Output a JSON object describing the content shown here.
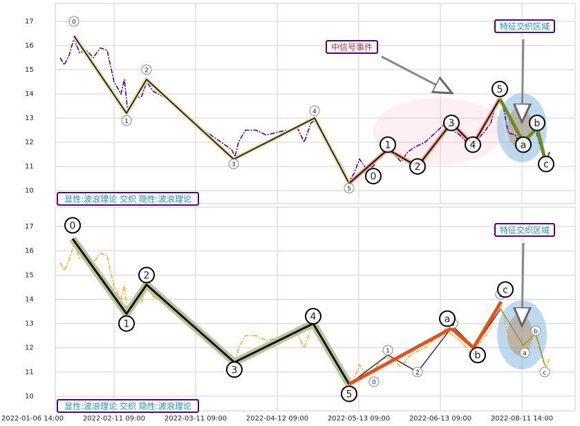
{
  "chart_data": [
    {
      "type": "wave",
      "xlim": [
        16.5,
        392.5
      ],
      "ylim": [
        9.46,
        17.74
      ],
      "xticks": [
        59,
        118,
        177,
        236,
        295,
        354
      ],
      "yticks": [
        10,
        11,
        12,
        13,
        14,
        15,
        16,
        17
      ],
      "grid": true,
      "price": {
        "color": "#4b0082",
        "x": [
          20,
          23,
          26.5,
          30,
          34,
          39,
          44,
          49,
          54,
          59,
          64,
          66.5,
          69,
          74,
          79,
          82.5,
          87.5,
          94,
          101.5,
          109,
          116.5,
          124,
          131.5,
          139,
          144,
          146.5,
          149,
          154,
          161.5,
          169,
          176.5,
          184,
          191.5,
          196.5,
          201.5,
          204,
          209,
          214,
          219,
          224,
          229,
          232.5,
          236.5,
          241.5,
          246.5,
          251.5,
          256.5,
          261.5,
          266.5,
          271.5,
          276.5,
          284,
          291.5,
          299,
          304,
          309,
          314,
          317.5,
          321.5,
          326.5,
          331.5,
          336.5,
          340.5,
          344,
          349,
          354,
          359,
          364,
          369,
          371.5,
          374
        ],
        "y": [
          15.5,
          15.2,
          15.6,
          16.3,
          15.7,
          15.8,
          15.5,
          15.9,
          15.8,
          14.5,
          14.0,
          14.6,
          13.2,
          13.8,
          13.9,
          14.5,
          14.1,
          13.9,
          13.6,
          13.2,
          12.9,
          12.5,
          12.2,
          11.9,
          11.7,
          11.4,
          12.0,
          12.5,
          12.5,
          12.3,
          12.4,
          12.5,
          12.6,
          12.0,
          12.8,
          12.9,
          12.4,
          12.0,
          11.5,
          11.0,
          10.4,
          10.7,
          11.3,
          10.9,
          11.0,
          11.5,
          11.6,
          11.5,
          11.2,
          11.6,
          11.8,
          12.0,
          12.4,
          12.8,
          12.5,
          12.3,
          12.0,
          11.7,
          12.1,
          12.4,
          12.8,
          13.8,
          13.5,
          12.4,
          12.3,
          11.8,
          12.2,
          12.5,
          11.5,
          11.2,
          11.6
        ]
      },
      "waves": [
        {
          "color": "#2b2b10",
          "halo": "#e4e0b8",
          "x": [
            30,
            68,
            82.5,
            145.5,
            204,
            229
          ],
          "y": [
            16.4,
            13.2,
            14.6,
            11.3,
            13.0,
            10.3
          ]
        },
        {
          "color": "#111111",
          "halo": "#f4a582",
          "x": [
            229,
            257,
            278.5,
            303,
            318.5,
            338
          ],
          "y": [
            10.3,
            11.7,
            11.0,
            12.8,
            11.9,
            13.8
          ]
        },
        {
          "color": "#6b8e23",
          "x": [
            338,
            355,
            365,
            371.5
          ],
          "y": [
            13.8,
            12.0,
            12.6,
            11.1
          ]
        }
      ],
      "minor_labels": [
        {
          "x": 30,
          "y": 17.0,
          "label": "0"
        },
        {
          "x": 68,
          "y": 12.9,
          "label": "1"
        },
        {
          "x": 82.5,
          "y": 15.0,
          "label": "2"
        },
        {
          "x": 145.5,
          "y": 11.1,
          "label": "3"
        },
        {
          "x": 204,
          "y": 13.3,
          "label": "4"
        },
        {
          "x": 229,
          "y": 10.1,
          "label": "5"
        }
      ],
      "major_labels": [
        {
          "x": 246.5,
          "y": 10.6,
          "label": "0"
        },
        {
          "x": 257,
          "y": 11.9,
          "label": "1"
        },
        {
          "x": 278.5,
          "y": 11.0,
          "label": "2"
        },
        {
          "x": 303,
          "y": 12.8,
          "label": "3"
        },
        {
          "x": 318.5,
          "y": 11.9,
          "label": "4"
        },
        {
          "x": 338,
          "y": 14.2,
          "label": "5"
        },
        {
          "x": 355,
          "y": 11.9,
          "label": "a"
        },
        {
          "x": 365,
          "y": 12.8,
          "label": "b"
        },
        {
          "x": 371.5,
          "y": 11.1,
          "label": "c"
        }
      ],
      "event_label": "中信号事件",
      "zone_label": "特征交织区域",
      "legend_label": "显性:波浪理论 交织 隐性:波浪理论"
    },
    {
      "type": "wave",
      "xlim": [
        16.5,
        392.5
      ],
      "ylim": [
        9.4,
        17.8
      ],
      "xticks": [
        {
          "value": 0,
          "label": "2022-01-06 14:00"
        },
        {
          "value": 59,
          "label": "2022-02-11 09:00"
        },
        {
          "value": 118,
          "label": "2022-03-11 09:00"
        },
        {
          "value": 177,
          "label": "2022-04-12 09:00"
        },
        {
          "value": 236,
          "label": "2022-05-13 09:00"
        },
        {
          "value": 295,
          "label": "2022-06-13 09:00"
        },
        {
          "value": 354,
          "label": "2022-08-11 14:00"
        }
      ],
      "yticks": [
        10,
        11,
        12,
        13,
        14,
        15,
        16,
        17
      ],
      "grid": true,
      "price": {
        "color": "#f0b030",
        "x": [
          20,
          23,
          26.5,
          30,
          34,
          39,
          44,
          49,
          54,
          59,
          64,
          66.5,
          69,
          74,
          79,
          82.5,
          87.5,
          94,
          101.5,
          109,
          116.5,
          124,
          131.5,
          139,
          144,
          146.5,
          149,
          154,
          161.5,
          169,
          176.5,
          184,
          191.5,
          196.5,
          201.5,
          204,
          209,
          214,
          219,
          224,
          229,
          232.5,
          236.5,
          241.5,
          246.5,
          251.5,
          256.5,
          261.5,
          266.5,
          271.5,
          276.5,
          284,
          291.5,
          299,
          304,
          309,
          314,
          317.5,
          321.5,
          326.5,
          331.5,
          336.5,
          340.5,
          344,
          349,
          354,
          359,
          364,
          369,
          371.5,
          374
        ],
        "y": [
          15.5,
          15.2,
          15.6,
          16.3,
          15.7,
          15.8,
          15.5,
          15.9,
          15.8,
          14.5,
          14.0,
          14.6,
          13.2,
          13.8,
          13.9,
          14.5,
          14.1,
          13.9,
          13.6,
          13.2,
          12.9,
          12.5,
          12.2,
          11.9,
          11.7,
          11.4,
          12.0,
          12.5,
          12.5,
          12.3,
          12.4,
          12.5,
          12.6,
          12.0,
          12.8,
          12.9,
          12.4,
          12.0,
          11.5,
          11.0,
          10.4,
          10.7,
          11.3,
          10.9,
          11.0,
          11.5,
          11.6,
          11.5,
          11.2,
          11.6,
          11.8,
          12.0,
          12.4,
          12.8,
          12.5,
          12.3,
          12.0,
          11.7,
          12.1,
          12.4,
          12.8,
          13.8,
          13.5,
          12.4,
          12.3,
          11.8,
          12.2,
          12.5,
          11.5,
          11.2,
          11.6
        ]
      },
      "waves": [
        {
          "color": "#111111",
          "halo": "#b9c49c",
          "x": [
            29,
            68,
            82.5,
            146,
            203,
            229
          ],
          "y": [
            16.5,
            13.4,
            14.6,
            11.4,
            13.0,
            10.5
          ]
        },
        {
          "color": "#333333",
          "x": [
            229,
            257,
            278.5,
            304,
            319.5,
            338.5
          ],
          "y": [
            10.5,
            11.7,
            11.0,
            12.9,
            12.0,
            13.6
          ]
        },
        {
          "color": "#e8501a",
          "x": [
            229,
            303,
            319,
            339
          ],
          "y": [
            10.5,
            12.8,
            12.0,
            13.9
          ]
        },
        {
          "color": "#8a9a3a",
          "x": [
            338.5,
            355,
            364,
            370.5
          ],
          "y": [
            13.6,
            12.1,
            12.6,
            11.3
          ]
        }
      ],
      "minor_labels": [
        {
          "x": 247,
          "y": 10.6,
          "label": "0"
        },
        {
          "x": 257,
          "y": 11.9,
          "label": "1"
        },
        {
          "x": 278.5,
          "y": 11.0,
          "label": "2"
        },
        {
          "x": 304,
          "y": 13.0,
          "label": "3"
        },
        {
          "x": 319.5,
          "y": 11.7,
          "label": "4"
        },
        {
          "x": 338.5,
          "y": 14.2,
          "label": "5"
        },
        {
          "x": 356,
          "y": 11.8,
          "label": "a"
        },
        {
          "x": 364,
          "y": 12.7,
          "label": "b"
        },
        {
          "x": 370.5,
          "y": 11.0,
          "label": "c"
        }
      ],
      "major_labels": [
        {
          "x": 29,
          "y": 17.05,
          "label": "0"
        },
        {
          "x": 68,
          "y": 13.0,
          "label": "1"
        },
        {
          "x": 82.5,
          "y": 15.0,
          "label": "2"
        },
        {
          "x": 146,
          "y": 11.1,
          "label": "3"
        },
        {
          "x": 203,
          "y": 13.3,
          "label": "4"
        },
        {
          "x": 229,
          "y": 10.1,
          "label": "5"
        },
        {
          "x": 300,
          "y": 13.2,
          "label": "a"
        },
        {
          "x": 322,
          "y": 11.7,
          "label": "b"
        },
        {
          "x": 342,
          "y": 14.4,
          "label": "c"
        }
      ],
      "zone_label": "特征交织区域",
      "legend_label": "显性:波浪理论 交织 隐性:波浪理论"
    }
  ]
}
